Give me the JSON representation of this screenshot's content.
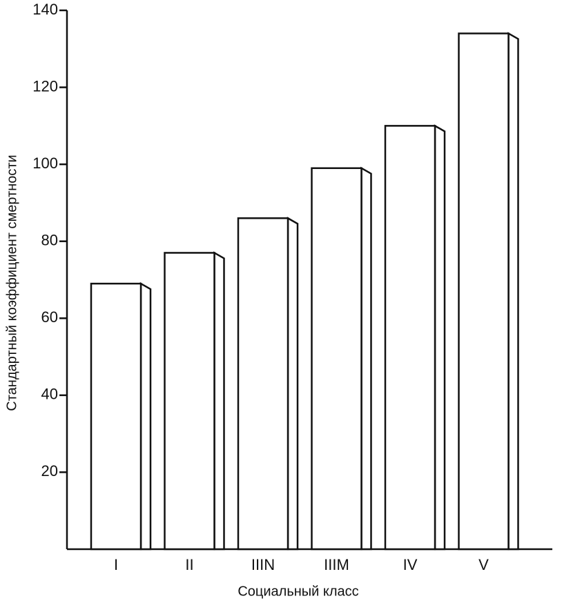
{
  "chart_data": {
    "type": "bar",
    "y_label": "Стандартный коэффициент смертности",
    "x_label": "Социальный класс",
    "categories": [
      "I",
      "II",
      "IIIN",
      "IIIM",
      "IV",
      "V"
    ],
    "values": [
      69,
      77,
      86,
      99,
      110,
      134
    ],
    "color": "#ffffff",
    "ylim": [
      0,
      140
    ],
    "yticks": [
      20,
      40,
      60,
      80,
      100,
      120,
      140
    ]
  }
}
